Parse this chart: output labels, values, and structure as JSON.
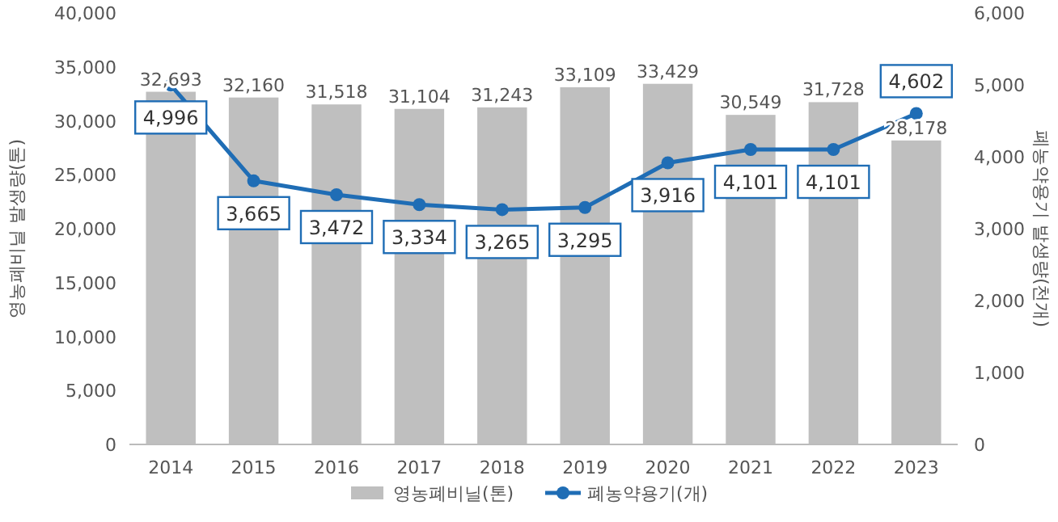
{
  "chart_data": {
    "type": "bar",
    "categories": [
      "2014",
      "2015",
      "2016",
      "2017",
      "2018",
      "2019",
      "2020",
      "2021",
      "2022",
      "2023"
    ],
    "ylabel": "영농폐비닐 발생량(톤)",
    "y2label": "폐농약용기 발생량(천개)",
    "ylim": [
      0,
      40000
    ],
    "yticks": [
      0,
      {
        "value": 5000,
        "label": "5,000"
      },
      {
        "value": 10000,
        "label": "10,000"
      },
      {
        "value": 15000,
        "label": "15,000"
      },
      {
        "value": 20000,
        "label": "20,000"
      },
      {
        "value": 25000,
        "label": "25,000"
      },
      {
        "value": 30000,
        "label": "30,000"
      },
      {
        "value": 35000,
        "label": "35,000"
      },
      {
        "value": 40000,
        "label": "40,000"
      }
    ],
    "y2lim": [
      0,
      6000
    ],
    "y2ticks": [
      0,
      {
        "value": 1000,
        "label": "1,000"
      },
      {
        "value": 2000,
        "label": "2,000"
      },
      {
        "value": 3000,
        "label": "3,000"
      },
      {
        "value": 4000,
        "label": "4,000"
      },
      {
        "value": 5000,
        "label": "5,000"
      },
      {
        "value": 6000,
        "label": "6,000"
      }
    ],
    "legend": "bottom",
    "grid": false,
    "series": [
      {
        "name": "영농폐비닐(톤)",
        "color": "#bfbfbf",
        "values": [
          32693,
          32160,
          31518,
          31104,
          31243,
          33109,
          33429,
          30549,
          31728,
          28178
        ],
        "value_labels": [
          "32,693",
          "32,160",
          "31,518",
          "31,104",
          "31,243",
          "33,109",
          "33,429",
          "30,549",
          "31,728",
          "28,178"
        ]
      },
      {
        "name": "폐농약용기(개)",
        "type": "line",
        "axis": "y2",
        "marker": "circle",
        "color": "#1f6db5",
        "values": [
          4996,
          3665,
          3472,
          3334,
          3265,
          3295,
          3916,
          4101,
          4101,
          4602
        ],
        "value_labels": [
          "4,996",
          "3,665",
          "3,472",
          "3,334",
          "3,265",
          "3,295",
          "3,916",
          "4,101",
          "4,101",
          "4,602"
        ]
      }
    ]
  }
}
